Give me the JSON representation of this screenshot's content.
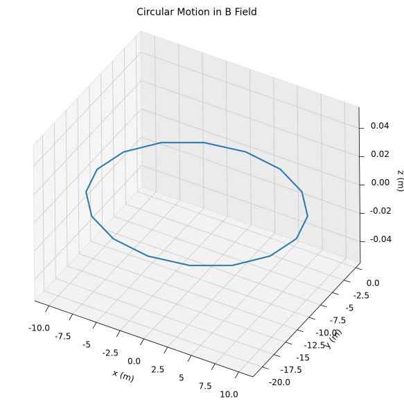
{
  "chart_data": {
    "type": "line3d",
    "title": "Circular Motion in B Field",
    "xlabel": "x (m)",
    "ylabel": "y (m)",
    "zlabel": "z (m)",
    "xlim": [
      -11.5,
      11.5
    ],
    "ylim": [
      -22,
      1
    ],
    "zlim": [
      -0.055,
      0.055
    ],
    "xticks": [
      {
        "value": -10,
        "label": "-10.0"
      },
      -7.5,
      -5,
      -2.5,
      {
        "value": 0,
        "label": "0.0"
      },
      2.5,
      5,
      7.5,
      {
        "value": 10,
        "label": "10.0"
      }
    ],
    "yticks": [
      {
        "value": 0,
        "label": "0.0"
      },
      -2.5,
      -5,
      -7.5,
      {
        "value": -10,
        "label": "-10.0"
      },
      -12.5,
      -15,
      -17.5,
      {
        "value": -20,
        "label": "-20.0"
      }
    ],
    "zticks": [
      0.04,
      0.02,
      {
        "value": 0,
        "label": "0.00"
      },
      -0.02,
      -0.04
    ],
    "grid": true,
    "series": [
      {
        "color": "#1f77b4",
        "x": [
          10.5,
          9.7,
          7.42,
          4.02,
          0,
          -4.02,
          -7.42,
          -9.7,
          -10.5,
          -9.7,
          -7.42,
          -4.02,
          0,
          4.02,
          7.42,
          9.7,
          10.5
        ],
        "y": [
          -10.5,
          -6.48,
          -3.08,
          -0.8,
          0,
          -0.8,
          -3.08,
          -6.48,
          -10.5,
          -14.52,
          -17.92,
          -20.2,
          -21,
          -20.2,
          -17.92,
          -14.52,
          -10.5
        ],
        "z": [
          0,
          0,
          0,
          0,
          0,
          0,
          0,
          0,
          0,
          0,
          0,
          0,
          0,
          0,
          0,
          0,
          0
        ]
      }
    ]
  }
}
